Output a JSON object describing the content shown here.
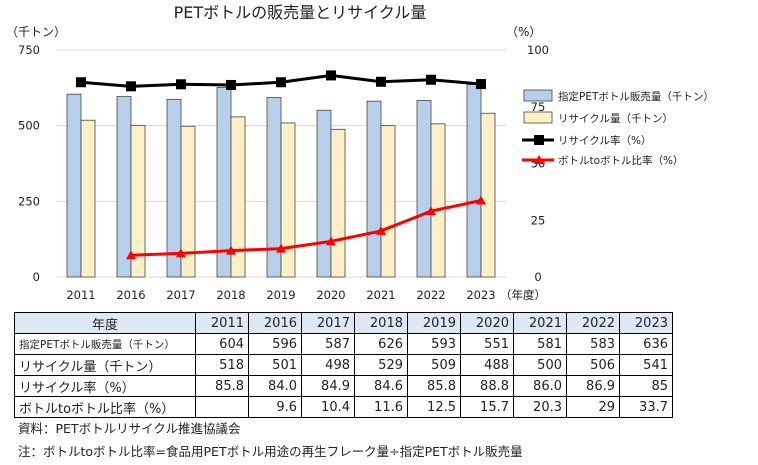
{
  "chart_data": {
    "type": "bar",
    "title": "PETボトルの販売量とリサイクル量",
    "y_left_unit": "（千トン）",
    "y_right_unit": "（%）",
    "x_unit": "（年度）",
    "categories": [
      "2011",
      "2016",
      "2017",
      "2018",
      "2019",
      "2020",
      "2021",
      "2022",
      "2023"
    ],
    "ylim_left": [
      0,
      750
    ],
    "yticks_left": [
      "0",
      "250",
      "500",
      "750"
    ],
    "ylim_right": [
      0,
      100
    ],
    "yticks_right": [
      "0",
      "25",
      "50",
      "75",
      "100"
    ],
    "grid": true,
    "legend_position": "right",
    "series": [
      {
        "name": "指定PETボトル販売量（千トン）",
        "kind": "bar",
        "axis": "left",
        "color": "#b8cfea",
        "values": [
          604,
          596,
          587,
          626,
          593,
          551,
          581,
          583,
          636
        ]
      },
      {
        "name": "リサイクル量（千トン）",
        "kind": "bar",
        "axis": "left",
        "color": "#fdf0c6",
        "values": [
          518,
          501,
          498,
          529,
          509,
          488,
          500,
          506,
          541
        ]
      },
      {
        "name": "リサイクル率（%）",
        "kind": "line",
        "axis": "right",
        "color": "#000000",
        "values": [
          85.8,
          84.0,
          84.9,
          84.6,
          85.8,
          88.8,
          86.0,
          86.9,
          85
        ]
      },
      {
        "name": "ボトルtoボトル比率（%）",
        "kind": "line",
        "axis": "right",
        "color": "#ff0000",
        "values": [
          null,
          9.6,
          10.4,
          11.6,
          12.5,
          15.7,
          20.3,
          29,
          33.7
        ]
      }
    ]
  },
  "table": {
    "corner": "年度",
    "years": [
      "2011",
      "2016",
      "2017",
      "2018",
      "2019",
      "2020",
      "2021",
      "2022",
      "2023"
    ],
    "rows": [
      {
        "label": "指定PETボトル販売量（千トン）",
        "values": [
          "604",
          "596",
          "587",
          "626",
          "593",
          "551",
          "581",
          "583",
          "636"
        ]
      },
      {
        "label": "リサイクル量（千トン）",
        "values": [
          "518",
          "501",
          "498",
          "529",
          "509",
          "488",
          "500",
          "506",
          "541"
        ]
      },
      {
        "label": "リサイクル率（%）",
        "values": [
          "85.8",
          "84.0",
          "84.9",
          "84.6",
          "85.8",
          "88.8",
          "86.0",
          "86.9",
          "85"
        ]
      },
      {
        "label": "ボトルtoボトル比率（%）",
        "values": [
          "",
          "9.6",
          "10.4",
          "11.6",
          "12.5",
          "15.7",
          "20.3",
          "29",
          "33.7"
        ]
      }
    ]
  },
  "source_note": "資料：PETボトルリサイクル推進協議会",
  "footnote": "注：ボトルtoボトル比率=食品用PETボトル用途の再生フレーク量÷指定PETボトル販売量"
}
